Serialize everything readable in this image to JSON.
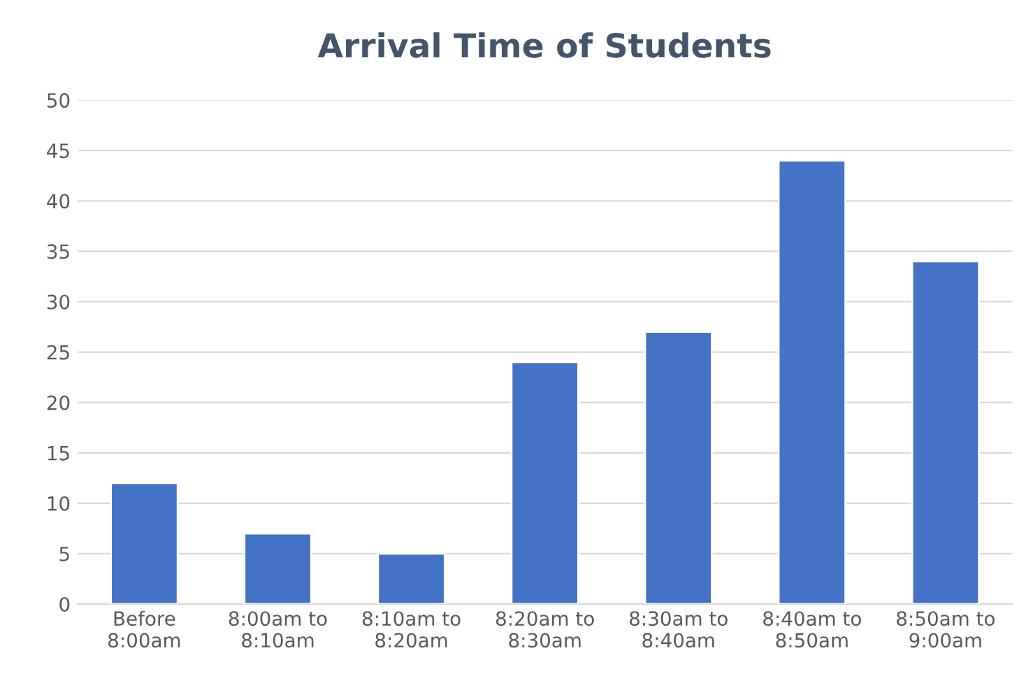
{
  "chart_data": {
    "type": "bar",
    "title": "Arrival Time of Students",
    "categories": [
      "Before\n8:00am",
      "8:00am to\n8:10am",
      "8:10am to\n8:20am",
      "8:20am to\n8:30am",
      "8:30am to\n8:40am",
      "8:40am to\n8:50am",
      "8:50am to\n9:00am"
    ],
    "values": [
      12,
      7,
      5,
      24,
      27,
      44,
      34
    ],
    "color": "#4472c4",
    "ylim": [
      0,
      50
    ],
    "yticks": [
      0,
      5,
      10,
      15,
      20,
      25,
      30,
      35,
      40,
      45,
      50
    ],
    "grid": "y"
  }
}
